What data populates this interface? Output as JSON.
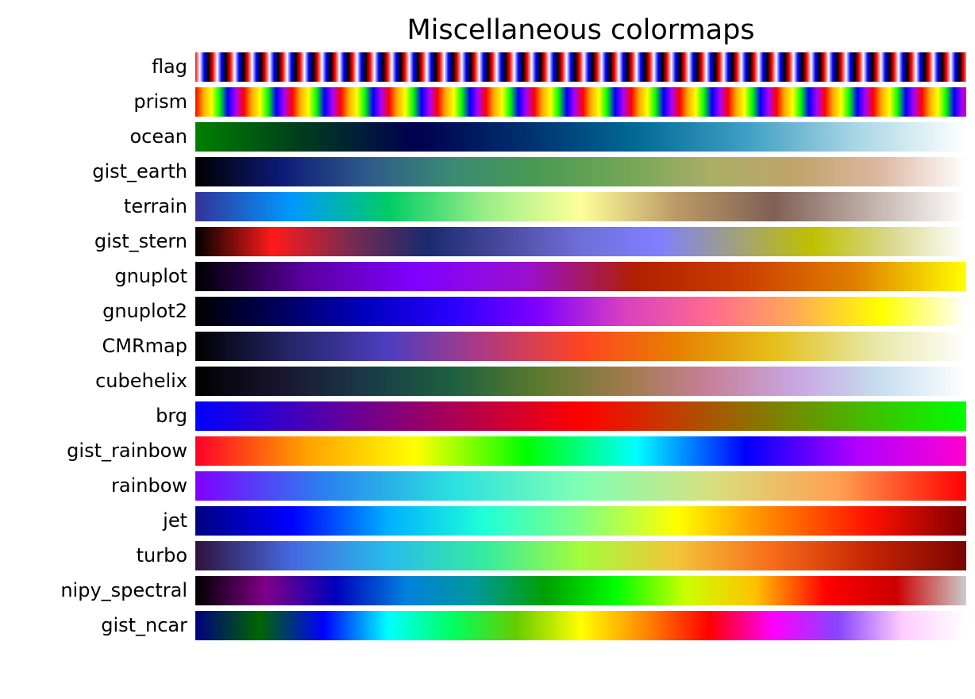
{
  "chart_data": {
    "type": "colormap-gradients",
    "title": "Miscellaneous colormaps",
    "colormaps": [
      {
        "name": "flag",
        "repeat": "22px",
        "stops": [
          "#ff0000",
          "#ffffff",
          "#0000ff",
          "#000000",
          "#ff0000"
        ]
      },
      {
        "name": "prism",
        "repeat": "61px",
        "stops": [
          "#ff0000",
          "#ffaa00",
          "#ffff00",
          "#00ff00",
          "#0000ff",
          "#aa00ff",
          "#ff0000"
        ]
      },
      {
        "name": "ocean",
        "stops": [
          "#008000",
          "#003a1f",
          "#000050",
          "#003070",
          "#006a96",
          "#3f9fc4",
          "#a8d6e4",
          "#ffffff"
        ]
      },
      {
        "name": "gist_earth",
        "stops": [
          "#000000",
          "#0d1a78",
          "#2e5a8a",
          "#3a8a74",
          "#4a9a52",
          "#72a656",
          "#a9ae66",
          "#c0a46a",
          "#dcb8a2",
          "#ffffff"
        ]
      },
      {
        "name": "terrain",
        "stops": [
          "#333399",
          "#0099ff",
          "#00cc66",
          "#99ee88",
          "#ffff99",
          "#bb9966",
          "#806055",
          "#c0b0aa",
          "#ffffff"
        ]
      },
      {
        "name": "gist_stern",
        "stops": [
          "#000000",
          "#ff1a1a",
          "#7a2a50",
          "#1a2a6e",
          "#4a4aa0",
          "#6f6fd8",
          "#7f7fff",
          "#a0a080",
          "#c0c000",
          "#d8d88c",
          "#ffffff"
        ]
      },
      {
        "name": "gnuplot",
        "stops": [
          "#000000",
          "#5a00a0",
          "#8000ff",
          "#9a10d0",
          "#b02000",
          "#cc4000",
          "#e08000",
          "#ffff00"
        ]
      },
      {
        "name": "gnuplot2",
        "stops": [
          "#000000",
          "#000060",
          "#0000c0",
          "#2a00ff",
          "#8000ff",
          "#d840c0",
          "#ff6a90",
          "#ffaa55",
          "#ffff00",
          "#ffffff"
        ]
      },
      {
        "name": "CMRmap",
        "stops": [
          "#000000",
          "#26266a",
          "#4d3ec0",
          "#b03a80",
          "#ff4422",
          "#e68000",
          "#e6bf1a",
          "#e6e6a0",
          "#ffffff"
        ]
      },
      {
        "name": "cubehelix",
        "stops": [
          "#000000",
          "#1a1530",
          "#1a3a48",
          "#1c6040",
          "#5c7a2e",
          "#a07a4a",
          "#c8809a",
          "#c8a6e0",
          "#c6def0",
          "#ffffff"
        ]
      },
      {
        "name": "brg",
        "stops": [
          "#0000ff",
          "#7f007f",
          "#ff0000",
          "#7f7f00",
          "#00ff00"
        ]
      },
      {
        "name": "gist_rainbow",
        "stops": [
          "#ff0029",
          "#ffa000",
          "#ffff00",
          "#00ff00",
          "#00ffff",
          "#0000ff",
          "#b000ff",
          "#ff00d0"
        ]
      },
      {
        "name": "rainbow",
        "stops": [
          "#8000ff",
          "#2a80f0",
          "#2ae0e0",
          "#80ffb4",
          "#d6e080",
          "#ffa050",
          "#ff0000"
        ]
      },
      {
        "name": "jet",
        "stops": [
          "#000080",
          "#0000ff",
          "#00b0ff",
          "#20ffd8",
          "#80ff80",
          "#ffff00",
          "#ff8000",
          "#ff1000",
          "#800000"
        ]
      },
      {
        "name": "turbo",
        "stops": [
          "#30123b",
          "#4668e0",
          "#28bceb",
          "#35eba0",
          "#a4fc3c",
          "#f4c43a",
          "#f66b19",
          "#c42503",
          "#7a0403"
        ]
      },
      {
        "name": "nipy_spectral",
        "stops": [
          "#000000",
          "#800088",
          "#0000bb",
          "#0080dd",
          "#009999",
          "#00a000",
          "#00ff00",
          "#ccff00",
          "#ffc000",
          "#ff0000",
          "#cc0000",
          "#cccccc"
        ]
      },
      {
        "name": "gist_ncar",
        "stops": [
          "#000080",
          "#006600",
          "#0000ff",
          "#00ffff",
          "#00ff60",
          "#66cc00",
          "#ffff00",
          "#ff8800",
          "#ff0000",
          "#ff00ff",
          "#8844ff",
          "#ffccff",
          "#ffffff"
        ]
      }
    ]
  }
}
